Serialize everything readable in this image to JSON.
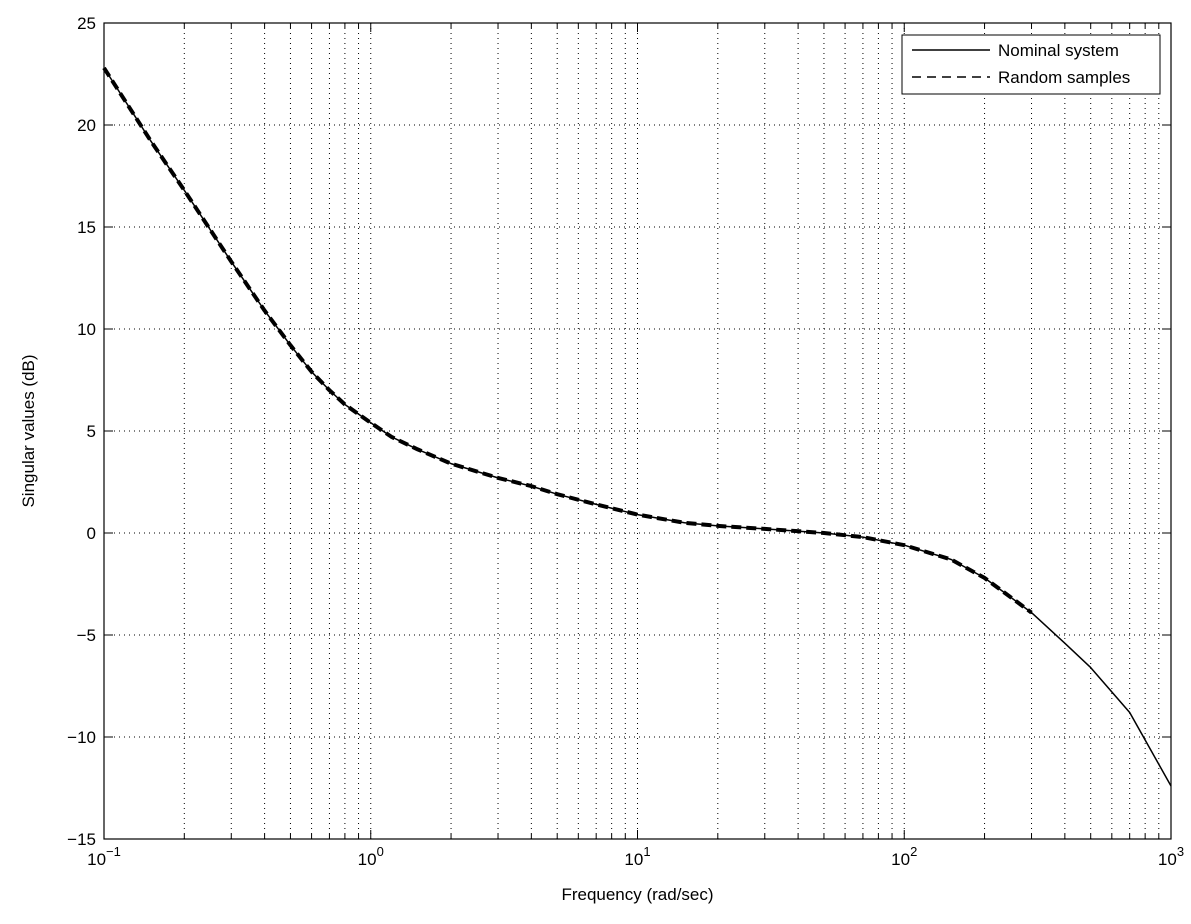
{
  "chart_data": {
    "type": "line",
    "title": "",
    "xlabel": "Frequency (rad/sec)",
    "ylabel": "Singular values (dB)",
    "xscale": "log",
    "xlim": [
      0.1,
      1000
    ],
    "ylim": [
      -15,
      25
    ],
    "grid": true,
    "legend_position": "top-right",
    "x_ticks": [
      {
        "value": 0.1,
        "base": "10",
        "exp": "−1"
      },
      {
        "value": 1,
        "base": "10",
        "exp": "0"
      },
      {
        "value": 10,
        "base": "10",
        "exp": "1"
      },
      {
        "value": 100,
        "base": "10",
        "exp": "2"
      },
      {
        "value": 1000,
        "base": "10",
        "exp": "3"
      }
    ],
    "y_ticks": [
      {
        "value": 25,
        "label": "25"
      },
      {
        "value": 20,
        "label": "20"
      },
      {
        "value": 15,
        "label": "15"
      },
      {
        "value": 10,
        "label": "10"
      },
      {
        "value": 5,
        "label": "5"
      },
      {
        "value": 0,
        "label": "0"
      },
      {
        "value": -5,
        "label": "−5"
      },
      {
        "value": -10,
        "label": "−10"
      },
      {
        "value": -15,
        "label": "−15"
      }
    ],
    "series": [
      {
        "name": "Nominal system",
        "style": "solid",
        "color": "#000000",
        "x": [
          0.1,
          0.15,
          0.2,
          0.3,
          0.4,
          0.5,
          0.6,
          0.7,
          0.8,
          1.0,
          1.2,
          1.5,
          2,
          3,
          4,
          5,
          7,
          10,
          15,
          20,
          30,
          50,
          70,
          100,
          150,
          200,
          300,
          400,
          500,
          700,
          1000
        ],
        "y": [
          22.8,
          19.2,
          16.8,
          13.3,
          10.9,
          9.2,
          7.9,
          7.0,
          6.3,
          5.4,
          4.7,
          4.1,
          3.4,
          2.7,
          2.3,
          1.9,
          1.4,
          0.9,
          0.5,
          0.35,
          0.2,
          0.0,
          -0.2,
          -0.6,
          -1.3,
          -2.2,
          -3.9,
          -5.4,
          -6.6,
          -8.8,
          -12.4
        ]
      },
      {
        "name": "Random samples",
        "style": "dashed",
        "color": "#000000",
        "x": [
          0.1,
          0.15,
          0.2,
          0.3,
          0.4,
          0.5,
          0.6,
          0.7,
          0.8,
          1.0,
          1.2,
          1.5,
          2,
          3,
          4,
          5,
          7,
          10,
          15,
          20,
          30,
          50,
          70,
          100,
          150,
          200,
          300
        ],
        "y": [
          22.8,
          19.2,
          16.8,
          13.3,
          10.9,
          9.2,
          7.9,
          7.0,
          6.3,
          5.4,
          4.7,
          4.1,
          3.4,
          2.7,
          2.3,
          1.9,
          1.4,
          0.9,
          0.5,
          0.35,
          0.2,
          0.0,
          -0.2,
          -0.6,
          -1.3,
          -2.2,
          -3.9
        ]
      }
    ]
  }
}
